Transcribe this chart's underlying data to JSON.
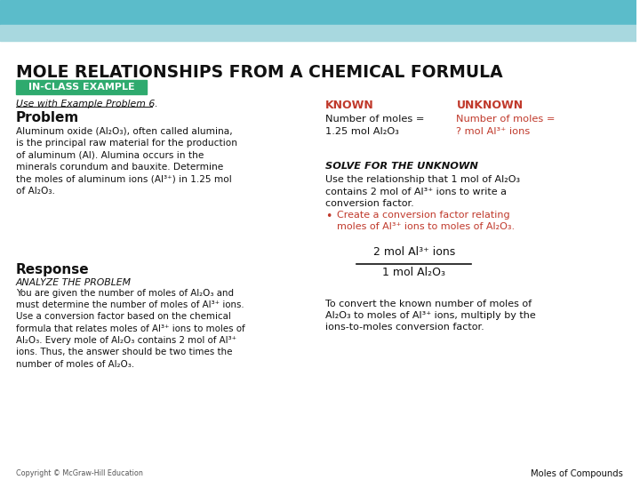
{
  "bg_color": "#ffffff",
  "header_color": "#5bbcca",
  "header_stripe_color": "#a8d8df",
  "title": "MOLE RELATIONSHIPS FROM A CHEMICAL FORMULA",
  "badge_text": "IN-CLASS EXAMPLE",
  "badge_bg": "#2eaa6e",
  "badge_text_color": "#ffffff",
  "subtitle": "Use with Example Problem 6.",
  "problem_heading": "Problem",
  "problem_text": "Aluminum oxide (Al₂O₃), often called alumina,\nis the principal raw material for the production\nof aluminum (Al). Alumina occurs in the\nminerals corundum and bauxite. Determine\nthe moles of aluminum ions (Al³⁺) in 1.25 mol\nof Al₂O₃.",
  "response_heading": "Response",
  "analyze_heading": "ANALYZE THE PROBLEM",
  "analyze_text": "You are given the number of moles of Al₂O₃ and\nmust determine the number of moles of Al³⁺ ions.\nUse a conversion factor based on the chemical\nformula that relates moles of Al³⁺ ions to moles of\nAl₂O₃. Every mole of Al₂O₃ contains 2 mol of Al³⁺\nions. Thus, the answer should be two times the\nnumber of moles of Al₂O₃.",
  "known_label": "KNOWN",
  "unknown_label": "UNKNOWN",
  "known_color": "#c0392b",
  "unknown_color": "#c0392b",
  "known_value": "Number of moles =\n1.25 mol Al₂O₃",
  "unknown_value": "Number of moles =\n? mol Al³⁺ ions",
  "solve_heading": "SOLVE FOR THE UNKNOWN",
  "solve_text1": "Use the relationship that 1 mol of Al₂O₃\ncontains 2 mol of Al³⁺ ions to write a\nconversion factor.",
  "bullet_text": "Create a conversion factor relating\nmoles of Al³⁺ ions to moles of Al₂O₃.",
  "fraction_num": "2 mol Al³⁺ ions",
  "fraction_den": "1 mol Al₂O₃",
  "solve_text2": "To convert the known number of moles of\nAl₂O₃ to moles of Al³⁺ ions, multiply by the\nions-to-moles conversion factor.",
  "footer_left": "Copyright © McGraw-Hill Education",
  "footer_right": "Moles of Compounds",
  "text_color": "#222222",
  "red_color": "#c0392b"
}
